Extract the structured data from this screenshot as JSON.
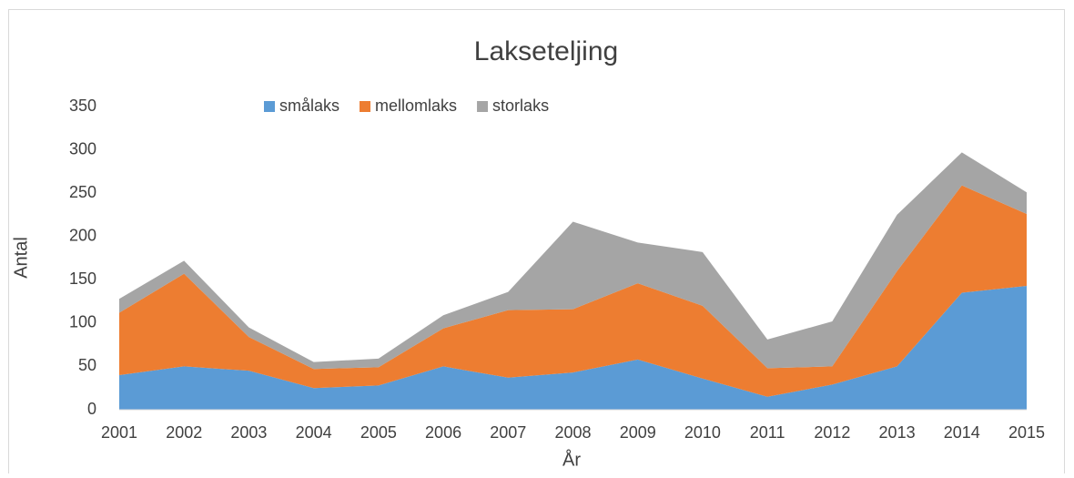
{
  "chart_data": {
    "type": "stacked-area",
    "title": "Lakseteljing",
    "x_label": "År",
    "y_label": "Antal",
    "categories": [
      "2001",
      "2002",
      "2003",
      "2004",
      "2005",
      "2006",
      "2007",
      "2008",
      "2009",
      "2010",
      "2011",
      "2012",
      "2013",
      "2014",
      "2015"
    ],
    "series": [
      {
        "name": "smålaks",
        "color": "#5b9bd5",
        "values": [
          40,
          50,
          45,
          25,
          28,
          50,
          37,
          43,
          58,
          36,
          15,
          29,
          50,
          135,
          143
        ]
      },
      {
        "name": "mellomlaks",
        "color": "#ed7d31",
        "values": [
          72,
          107,
          39,
          22,
          21,
          44,
          78,
          73,
          88,
          84,
          33,
          21,
          110,
          124,
          83
        ]
      },
      {
        "name": "storlaks",
        "color": "#a5a5a5",
        "values": [
          16,
          15,
          11,
          8,
          10,
          15,
          21,
          101,
          47,
          62,
          33,
          52,
          65,
          38,
          25
        ]
      }
    ],
    "ylim": [
      0,
      350
    ],
    "yticks": [
      0,
      50,
      100,
      150,
      200,
      250,
      300,
      350
    ],
    "legend": "top"
  }
}
